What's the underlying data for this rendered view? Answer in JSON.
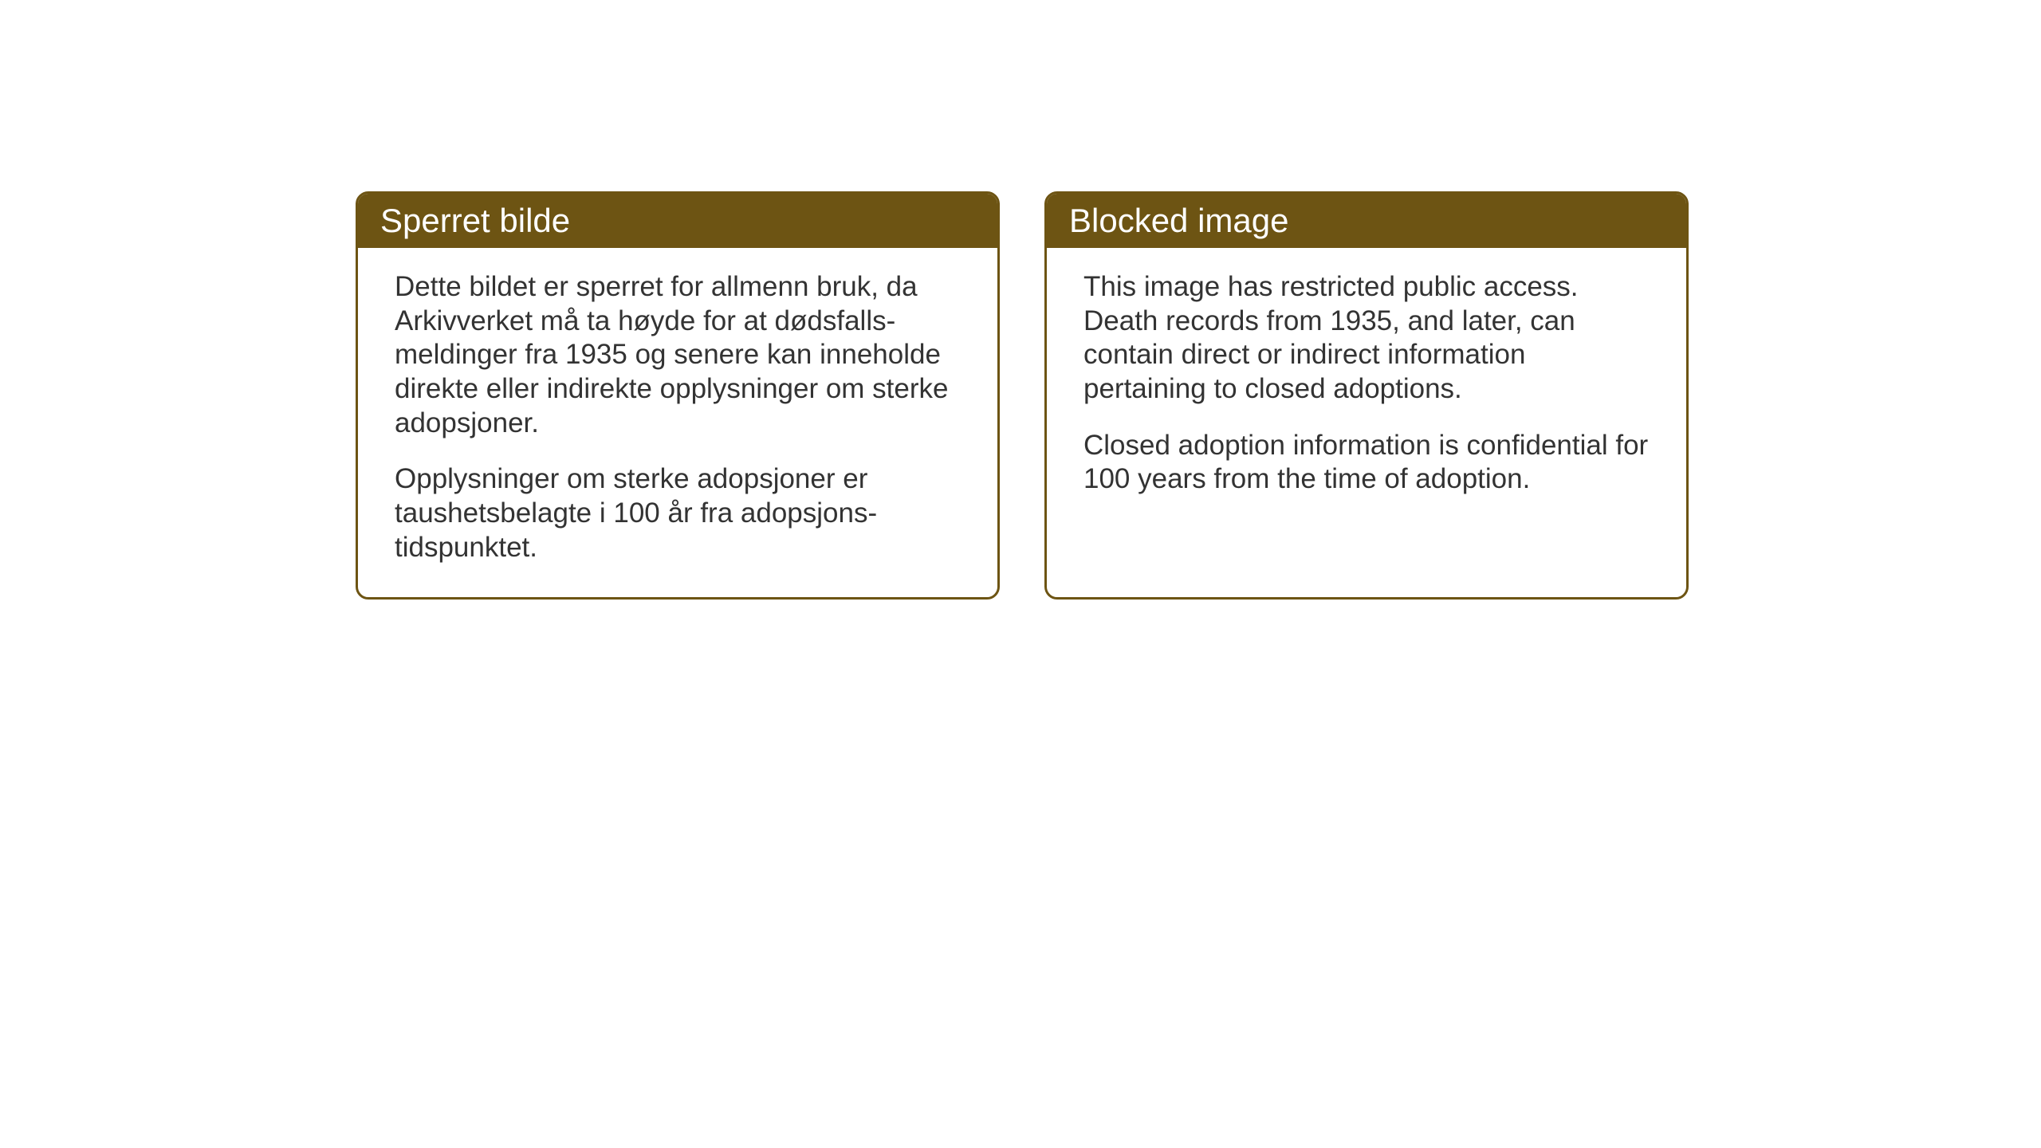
{
  "cards": {
    "norwegian": {
      "title": "Sperret bilde",
      "paragraph1": "Dette bildet er sperret for allmenn bruk, da Arkivverket må ta høyde for at dødsfalls-meldinger fra 1935 og senere kan inneholde direkte eller indirekte opplysninger om sterke adopsjoner.",
      "paragraph2": "Opplysninger om sterke adopsjoner er taushetsbelagte i 100 år fra adopsjons-tidspunktet."
    },
    "english": {
      "title": "Blocked image",
      "paragraph1": "This image has restricted public access. Death records from 1935, and later, can contain direct or indirect information pertaining to closed adoptions.",
      "paragraph2": "Closed adoption information is confidential for 100 years from the time of adoption."
    }
  },
  "styling": {
    "header_bg_color": "#6d5413",
    "header_text_color": "#ffffff",
    "border_color": "#6d5413",
    "body_text_color": "#333333",
    "background_color": "#ffffff",
    "border_radius": 16,
    "border_width": 3,
    "title_fontsize": 42,
    "body_fontsize": 35
  }
}
